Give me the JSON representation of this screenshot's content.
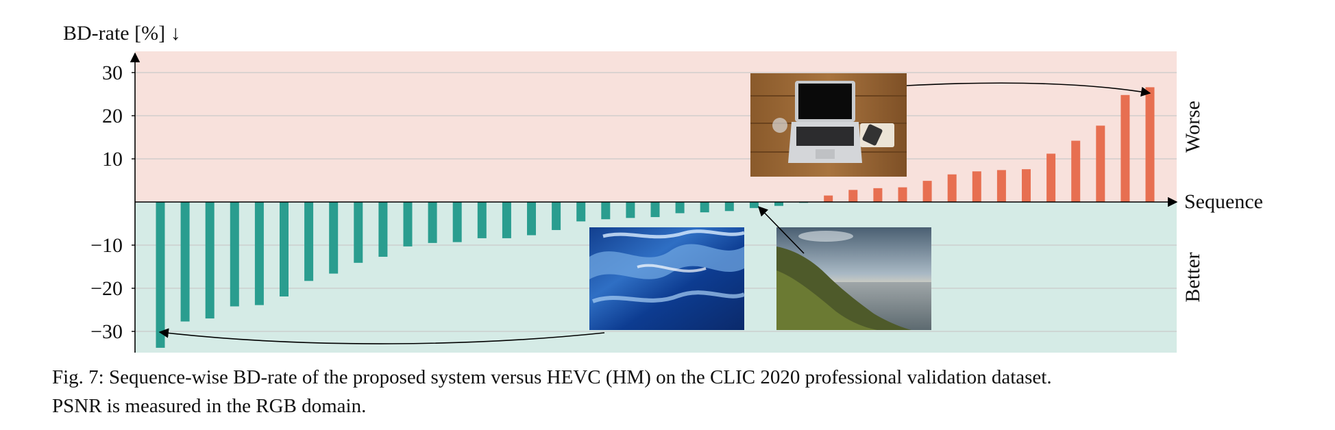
{
  "colors": {
    "worse_region": "#f8e1dc",
    "better_region": "#d5ebe6",
    "positive_bar": "#e76f51",
    "negative_bar": "#2a9d8f",
    "gridline": "#c9c9c9",
    "axis": "#000000"
  },
  "chart_data": {
    "type": "bar",
    "ylabel": "BD-rate [%] ↓",
    "xlabel": "Sequence",
    "region_labels": {
      "upper": "Worse",
      "lower": "Better"
    },
    "ylim": [
      -35,
      35
    ],
    "yticks": [
      30,
      20,
      10,
      -10,
      -20,
      -30
    ],
    "ytick_labels": [
      "30",
      "20",
      "10",
      "−10",
      "−20",
      "−30"
    ],
    "grid": true,
    "values": [
      -33.8,
      -27.7,
      -27.0,
      -24.2,
      -23.9,
      -21.9,
      -18.3,
      -16.6,
      -14.1,
      -12.7,
      -10.3,
      -9.5,
      -9.3,
      -8.4,
      -8.4,
      -7.7,
      -6.5,
      -4.5,
      -4.0,
      -3.7,
      -3.5,
      -2.6,
      -2.4,
      -2.1,
      -1.4,
      -0.9,
      -0.2,
      1.5,
      2.8,
      3.2,
      3.4,
      4.9,
      6.4,
      7.1,
      7.4,
      7.6,
      11.2,
      14.2,
      17.7,
      24.8,
      26.6
    ],
    "annotations": [
      {
        "name": "ocean-thumbnail",
        "points_to_bar": 0,
        "picture": "ocean waves"
      },
      {
        "name": "coast-thumbnail",
        "points_to_bar": 24,
        "picture": "coastline at sunset"
      },
      {
        "name": "laptop-thumbnail",
        "points_to_bar": 40,
        "picture": "laptop on wooden table"
      }
    ]
  },
  "caption": {
    "line1": "Fig. 7: Sequence-wise BD-rate of the proposed system versus HEVC (HM) on the CLIC 2020 professional validation dataset.",
    "line2": "PSNR is measured in the RGB domain."
  }
}
